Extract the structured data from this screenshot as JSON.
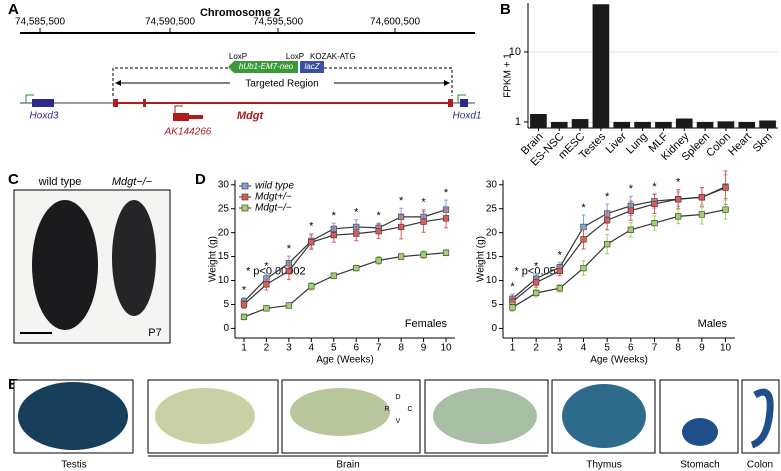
{
  "panel_a": {
    "label": "A",
    "title": "Chromosome 2",
    "coords": [
      "74,585,500",
      "74,590,500",
      "74,595,500",
      "74,600,500"
    ],
    "loxp_left": "LoxP",
    "neo": "hUb1-EM7-neo",
    "loxp_right": "LoxP",
    "lacz": "lacZ",
    "kozak": "KOZAK-ATG",
    "targeted": "Targeted Region",
    "genes": {
      "hoxd3": "Hoxd3",
      "mdgt": "Mdgt",
      "ak": "AK144266",
      "hoxd1": "Hoxd1"
    }
  },
  "panel_c": {
    "label": "C",
    "wt": "wild type",
    "ko": "Mdgt−/−",
    "age": "P7"
  },
  "panel_e": {
    "label": "E",
    "tissues": [
      "Testis",
      "Brain",
      "Thymus",
      "Stomach",
      "Colon"
    ],
    "orientation": {
      "d": "D",
      "v": "V",
      "r": "R",
      "c": "C"
    }
  },
  "chart_data": [
    {
      "type": "bar",
      "panel_label": "B",
      "ylabel": "FPKM + 1",
      "log_y": true,
      "grid": true,
      "color": "#1a1a1a",
      "categories": [
        "Brain",
        "ES-NSC",
        "mESC",
        "Testes",
        "Liver",
        "Lung",
        "MLF",
        "Kidney",
        "Spleen",
        "Colon",
        "Heart",
        "Skm"
      ],
      "values": [
        1.3,
        1,
        1.1,
        48,
        1,
        1,
        1,
        1.12,
        1,
        1.02,
        1,
        1.05
      ],
      "ylim": [
        0.82,
        50
      ],
      "yticks": [
        1,
        10
      ]
    },
    {
      "type": "line",
      "panel_label": "D",
      "title": "Females",
      "annotation": "* p<0.00002",
      "xlabel": "Age (Weeks)",
      "ylabel": "Weight (g)",
      "legend": "upper left",
      "line_color": "#333",
      "x": [
        1,
        2,
        3,
        4,
        5,
        6,
        7,
        8,
        9,
        10
      ],
      "xlim": [
        0.6,
        10.4
      ],
      "xticks": [
        1,
        2,
        3,
        4,
        5,
        6,
        7,
        8,
        9,
        10
      ],
      "ylim": [
        -2,
        31
      ],
      "yticks": [
        0,
        5,
        10,
        15,
        20,
        25,
        30
      ],
      "significance": [
        "*",
        "*",
        "*",
        "*",
        "*",
        "*",
        "*",
        "*",
        "*",
        "*"
      ],
      "series": [
        {
          "name": "wild type",
          "color": "#7ea6dc",
          "values": [
            5.6,
            10.4,
            13.6,
            18.3,
            20.8,
            21.2,
            21.0,
            23.3,
            23.3,
            24.8
          ],
          "errors": [
            0.8,
            1.0,
            1.5,
            1.5,
            1.2,
            1.5,
            1.0,
            1.8,
            1.5,
            2.0
          ]
        },
        {
          "name": "Mdgt+/−",
          "color": "#e05a5a",
          "values": [
            5.0,
            9.2,
            12.0,
            18.0,
            19.5,
            19.8,
            20.3,
            21.2,
            22.3,
            23.0
          ],
          "errors": [
            0.8,
            1.2,
            1.8,
            1.5,
            1.5,
            1.5,
            1.5,
            2.5,
            2.2,
            2.0
          ]
        },
        {
          "name": "Mdgt−/−",
          "color": "#9fd36a",
          "values": [
            2.4,
            4.2,
            4.8,
            8.8,
            11.0,
            12.6,
            14.2,
            15.0,
            15.4,
            15.8
          ],
          "errors": [
            0.6,
            0.5,
            0.5,
            0.8,
            0.6,
            0.6,
            0.8,
            0.6,
            0.8,
            0.6
          ]
        }
      ]
    },
    {
      "type": "line",
      "title": "Males",
      "annotation": "* p<0.05",
      "xlabel": "Age (Weeks)",
      "ylabel": "Weight (g)",
      "line_color": "#333",
      "x": [
        1,
        2,
        3,
        4,
        5,
        6,
        7,
        8,
        9,
        10
      ],
      "xlim": [
        0.6,
        10.4
      ],
      "xticks": [
        1,
        2,
        3,
        4,
        5,
        6,
        7,
        8,
        9,
        10
      ],
      "ylim": [
        -2,
        31
      ],
      "yticks": [
        0,
        5,
        10,
        15,
        20,
        25,
        30
      ],
      "significance": [
        "*",
        "*",
        "*",
        "*",
        "*",
        "*",
        "*",
        "*",
        null,
        null
      ],
      "series": [
        {
          "color": "#7ea6dc",
          "values": [
            6.2,
            10.4,
            12.8,
            21.2,
            24.0,
            25.6,
            26.6,
            27.0,
            27.4,
            29.6
          ],
          "errors": [
            1,
            1,
            1,
            2.5,
            2,
            2,
            1.5,
            1.5,
            2,
            2.5
          ]
        },
        {
          "color": "#e05a5a",
          "values": [
            5.6,
            9.6,
            12.0,
            18.6,
            22.6,
            24.6,
            26.0,
            27.0,
            27.4,
            29.4
          ],
          "errors": [
            1,
            1,
            1,
            2,
            2,
            2,
            2,
            2,
            2,
            3.5
          ]
        },
        {
          "color": "#9fd36a",
          "values": [
            4.4,
            7.4,
            8.4,
            12.6,
            17.6,
            20.6,
            22.0,
            23.4,
            23.8,
            24.8
          ],
          "errors": [
            0.8,
            0.8,
            0.8,
            1.5,
            2,
            1.5,
            1.5,
            1.5,
            2,
            2
          ]
        }
      ]
    }
  ]
}
